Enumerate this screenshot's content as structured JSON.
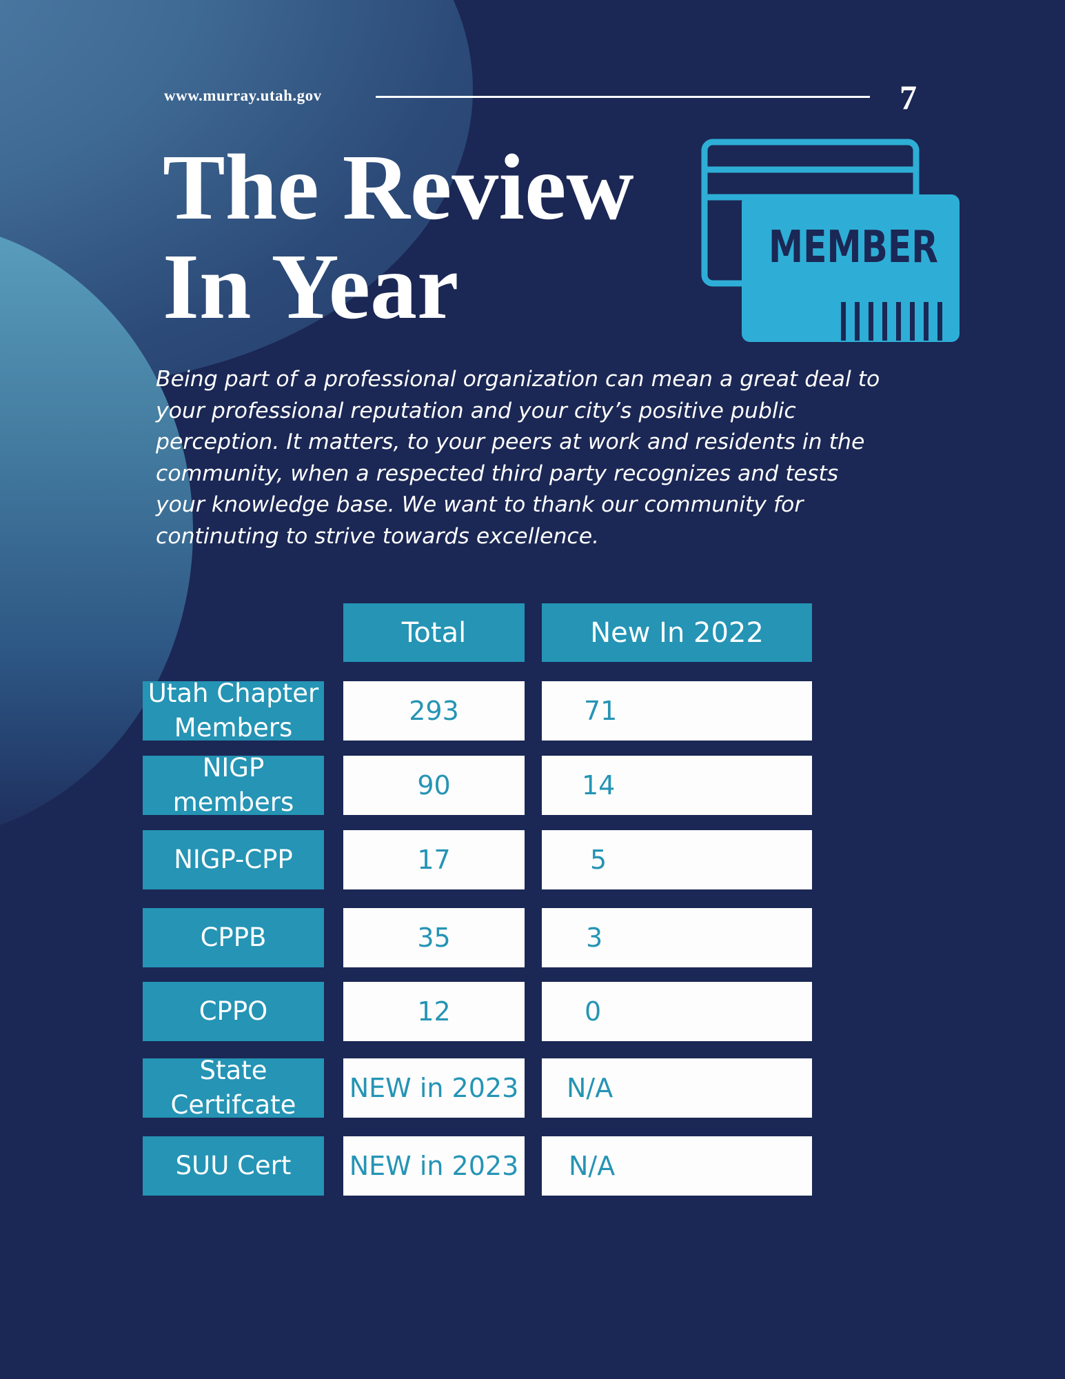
{
  "header": {
    "website": "www.murray.utah.gov",
    "page_number": "7"
  },
  "title": {
    "line1": "The Review",
    "line2": "In Year"
  },
  "member_icon": {
    "icon": "membership-card-icon",
    "text": "MEMBER",
    "color": "#2eaed6"
  },
  "intro": "Being part of a professional organization can mean a great deal to your professional reputation and your city’s positive public perception. It matters, to your peers at work and residents in the community, when a respected third party recognizes and tests your knowledge base. We want to thank our community for continuting to strive towards excellence.",
  "colors": {
    "background": "#1b2754",
    "accent": "#2594b5"
  },
  "table": {
    "headers": [
      "Total",
      "New In 2022"
    ],
    "rows": [
      {
        "label": "Utah Chapter Members",
        "total": "293",
        "new": "71"
      },
      {
        "label": "NIGP members",
        "total": "90",
        "new": "14"
      },
      {
        "label": "NIGP-CPP",
        "total": "17",
        "new": "5"
      },
      {
        "label": "CPPB",
        "total": "35",
        "new": "3"
      },
      {
        "label": "CPPO",
        "total": "12",
        "new": "0"
      },
      {
        "label": "State Certifcate",
        "total": "NEW in 2023",
        "new": "N/A"
      },
      {
        "label": "SUU Cert",
        "total": "NEW in 2023",
        "new": "N/A"
      }
    ]
  }
}
